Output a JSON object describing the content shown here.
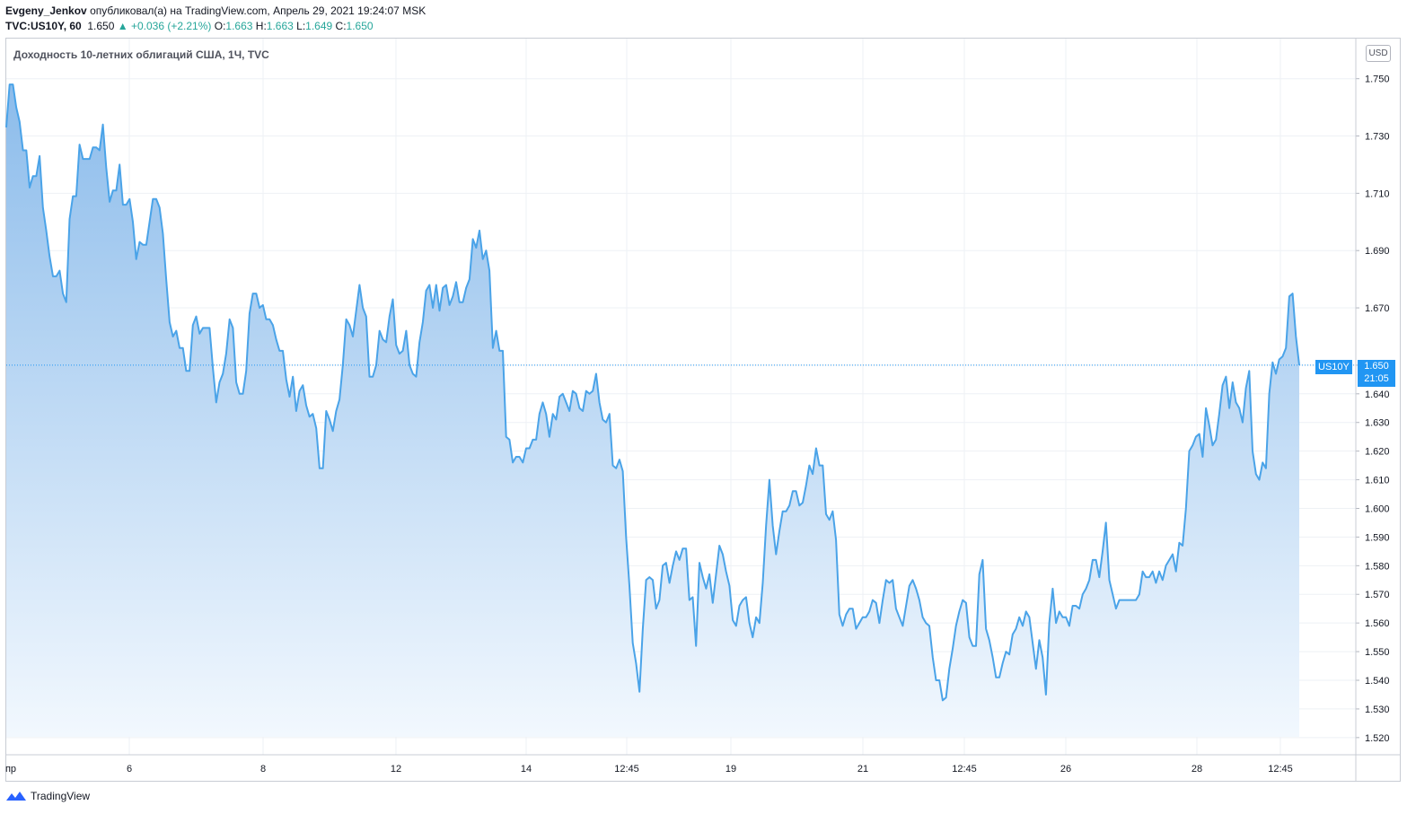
{
  "header": {
    "author": "Evgeny_Jenkov",
    "published_text": "опубликовал(а) на TradingView.com, Апрель 29, 2021 19:24:07 MSK",
    "symbol": "TVC:US10Y, 60",
    "last": "1.650",
    "change_arrow": "▲",
    "change": "+0.036 (+2.21%)",
    "o_label": "O:",
    "o_value": "1.663",
    "h_label": "H:",
    "h_value": "1.663",
    "l_label": "L:",
    "l_value": "1.649",
    "c_label": "C:",
    "c_value": "1.650"
  },
  "currency": "USD",
  "price_tag": {
    "symbol": "US10Y",
    "price": "1.650",
    "countdown": "21:05"
  },
  "footer": {
    "brand": "TradingView"
  },
  "colors": {
    "line": "#4aa3e8",
    "fill_top": "#8cbceb",
    "fill_bottom": "#f2f8fe",
    "tag": "#2196f3",
    "up": "#26a69a"
  },
  "chart_data": {
    "type": "area",
    "title": "Доходность 10-летних облигаций США, 1Ч, TVC",
    "ylim": [
      1.514,
      1.764
    ],
    "y_ticks": [
      "1.520",
      "1.530",
      "1.540",
      "1.550",
      "1.560",
      "1.570",
      "1.580",
      "1.590",
      "1.600",
      "1.610",
      "1.620",
      "1.630",
      "1.640",
      "1.650",
      "1.670",
      "1.690",
      "1.710",
      "1.730",
      "1.750"
    ],
    "x_tick_labels": [
      "пр",
      "6",
      "8",
      "12",
      "14",
      "12:45",
      "19",
      "21",
      "12:45",
      "26",
      "28",
      "12:45"
    ],
    "grid": true,
    "last_value": 1.65,
    "values": [
      1.733,
      1.748,
      1.748,
      1.74,
      1.735,
      1.725,
      1.725,
      1.712,
      1.716,
      1.716,
      1.723,
      1.705,
      1.697,
      1.688,
      1.681,
      1.681,
      1.683,
      1.675,
      1.672,
      1.701,
      1.709,
      1.709,
      1.727,
      1.722,
      1.722,
      1.722,
      1.726,
      1.726,
      1.725,
      1.734,
      1.719,
      1.707,
      1.711,
      1.711,
      1.72,
      1.706,
      1.706,
      1.708,
      1.7,
      1.687,
      1.693,
      1.692,
      1.692,
      1.7,
      1.708,
      1.708,
      1.705,
      1.696,
      1.68,
      1.665,
      1.66,
      1.662,
      1.656,
      1.656,
      1.648,
      1.648,
      1.664,
      1.667,
      1.661,
      1.663,
      1.663,
      1.663,
      1.649,
      1.637,
      1.644,
      1.647,
      1.654,
      1.666,
      1.663,
      1.644,
      1.64,
      1.64,
      1.648,
      1.668,
      1.675,
      1.675,
      1.67,
      1.671,
      1.666,
      1.666,
      1.664,
      1.659,
      1.655,
      1.655,
      1.645,
      1.639,
      1.646,
      1.634,
      1.641,
      1.643,
      1.636,
      1.632,
      1.633,
      1.628,
      1.614,
      1.614,
      1.634,
      1.631,
      1.627,
      1.634,
      1.638,
      1.65,
      1.666,
      1.664,
      1.66,
      1.669,
      1.678,
      1.67,
      1.667,
      1.646,
      1.646,
      1.65,
      1.662,
      1.659,
      1.658,
      1.667,
      1.673,
      1.657,
      1.654,
      1.655,
      1.662,
      1.65,
      1.647,
      1.646,
      1.658,
      1.665,
      1.676,
      1.678,
      1.67,
      1.678,
      1.669,
      1.677,
      1.678,
      1.671,
      1.674,
      1.679,
      1.672,
      1.672,
      1.677,
      1.68,
      1.694,
      1.691,
      1.697,
      1.687,
      1.69,
      1.683,
      1.656,
      1.662,
      1.655,
      1.655,
      1.625,
      1.624,
      1.616,
      1.618,
      1.618,
      1.616,
      1.621,
      1.621,
      1.624,
      1.624,
      1.633,
      1.637,
      1.633,
      1.625,
      1.633,
      1.631,
      1.639,
      1.64,
      1.637,
      1.634,
      1.641,
      1.64,
      1.635,
      1.634,
      1.641,
      1.64,
      1.641,
      1.647,
      1.637,
      1.631,
      1.63,
      1.633,
      1.615,
      1.614,
      1.617,
      1.613,
      1.59,
      1.573,
      1.553,
      1.546,
      1.536,
      1.558,
      1.575,
      1.576,
      1.575,
      1.565,
      1.568,
      1.58,
      1.581,
      1.574,
      1.58,
      1.585,
      1.582,
      1.586,
      1.586,
      1.568,
      1.569,
      1.552,
      1.581,
      1.576,
      1.572,
      1.577,
      1.567,
      1.577,
      1.587,
      1.584,
      1.578,
      1.573,
      1.561,
      1.559,
      1.566,
      1.568,
      1.569,
      1.56,
      1.555,
      1.562,
      1.56,
      1.574,
      1.594,
      1.61,
      1.594,
      1.584,
      1.592,
      1.599,
      1.599,
      1.601,
      1.606,
      1.606,
      1.601,
      1.602,
      1.608,
      1.615,
      1.612,
      1.621,
      1.615,
      1.615,
      1.598,
      1.596,
      1.599,
      1.589,
      1.563,
      1.559,
      1.563,
      1.565,
      1.565,
      1.558,
      1.56,
      1.562,
      1.562,
      1.564,
      1.568,
      1.567,
      1.56,
      1.568,
      1.575,
      1.574,
      1.575,
      1.565,
      1.562,
      1.559,
      1.566,
      1.573,
      1.575,
      1.572,
      1.568,
      1.562,
      1.56,
      1.559,
      1.548,
      1.54,
      1.54,
      1.533,
      1.534,
      1.544,
      1.551,
      1.559,
      1.564,
      1.568,
      1.567,
      1.555,
      1.552,
      1.552,
      1.577,
      1.582,
      1.558,
      1.554,
      1.548,
      1.541,
      1.541,
      1.546,
      1.55,
      1.549,
      1.556,
      1.558,
      1.562,
      1.559,
      1.564,
      1.562,
      1.553,
      1.544,
      1.554,
      1.548,
      1.535,
      1.56,
      1.572,
      1.56,
      1.564,
      1.562,
      1.562,
      1.559,
      1.566,
      1.566,
      1.565,
      1.57,
      1.572,
      1.575,
      1.582,
      1.582,
      1.576,
      1.585,
      1.595,
      1.575,
      1.57,
      1.565,
      1.568,
      1.568,
      1.568,
      1.568,
      1.568,
      1.568,
      1.57,
      1.578,
      1.576,
      1.576,
      1.578,
      1.574,
      1.578,
      1.575,
      1.58,
      1.582,
      1.584,
      1.578,
      1.588,
      1.587,
      1.6,
      1.62,
      1.622,
      1.625,
      1.626,
      1.618,
      1.635,
      1.629,
      1.622,
      1.624,
      1.633,
      1.643,
      1.646,
      1.635,
      1.644,
      1.637,
      1.635,
      1.63,
      1.642,
      1.648,
      1.62,
      1.612,
      1.61,
      1.616,
      1.614,
      1.64,
      1.651,
      1.647,
      1.652,
      1.653,
      1.656,
      1.674,
      1.675,
      1.66,
      1.65
    ]
  }
}
